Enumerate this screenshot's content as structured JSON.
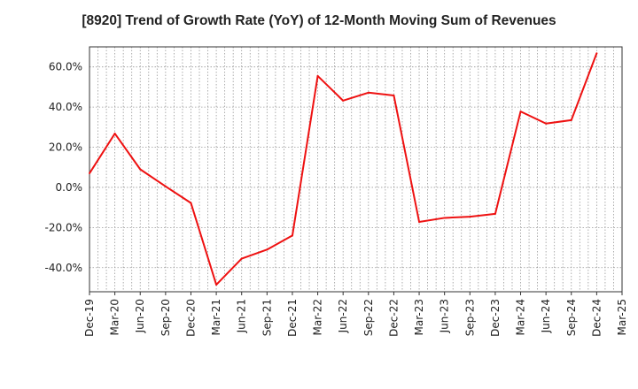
{
  "chart_data": {
    "type": "line",
    "title": "[8920]  Trend of Growth Rate (YoY) of 12-Month Moving Sum of Revenues",
    "xlabel": "",
    "ylabel": "",
    "x_tick_labels": [
      "Dec-19",
      "Mar-20",
      "Jun-20",
      "Sep-20",
      "Dec-20",
      "Mar-21",
      "Jun-21",
      "Sep-21",
      "Dec-21",
      "Mar-22",
      "Jun-22",
      "Sep-22",
      "Dec-22",
      "Mar-23",
      "Jun-23",
      "Sep-23",
      "Dec-23",
      "Mar-24",
      "Jun-24",
      "Sep-24",
      "Dec-24",
      "Mar-25"
    ],
    "y_ticks": [
      -40,
      -20,
      0,
      20,
      40,
      60
    ],
    "y_tick_labels": [
      "-40.0%",
      "-20.0%",
      "0.0%",
      "20.0%",
      "40.0%",
      "60.0%"
    ],
    "ylim": [
      -52,
      70
    ],
    "grid": true,
    "series": [
      {
        "color": "#ee1111",
        "points": [
          {
            "x": "Dec-19",
            "y": 7.0
          },
          {
            "x": "Mar-20",
            "y": 26.8
          },
          {
            "x": "Jun-20",
            "y": 9.0
          },
          {
            "x": "Sep-20",
            "y": 0.5
          },
          {
            "x": "Dec-20",
            "y": -7.8
          },
          {
            "x": "Mar-21",
            "y": -48.5
          },
          {
            "x": "Jun-21",
            "y": -35.5
          },
          {
            "x": "Sep-21",
            "y": -31.0
          },
          {
            "x": "Dec-21",
            "y": -24.0
          },
          {
            "x": "Mar-22",
            "y": 55.5
          },
          {
            "x": "Jun-22",
            "y": 43.2
          },
          {
            "x": "Sep-22",
            "y": 47.2
          },
          {
            "x": "Dec-22",
            "y": 45.8
          },
          {
            "x": "Mar-23",
            "y": -17.2
          },
          {
            "x": "Jun-23",
            "y": -15.2
          },
          {
            "x": "Sep-23",
            "y": -14.6
          },
          {
            "x": "Dec-23",
            "y": -13.2
          },
          {
            "x": "Mar-24",
            "y": 37.8
          },
          {
            "x": "Jun-24",
            "y": 31.8
          },
          {
            "x": "Sep-24",
            "y": 33.5
          },
          {
            "x": "Dec-24",
            "y": 66.8
          }
        ]
      }
    ]
  }
}
